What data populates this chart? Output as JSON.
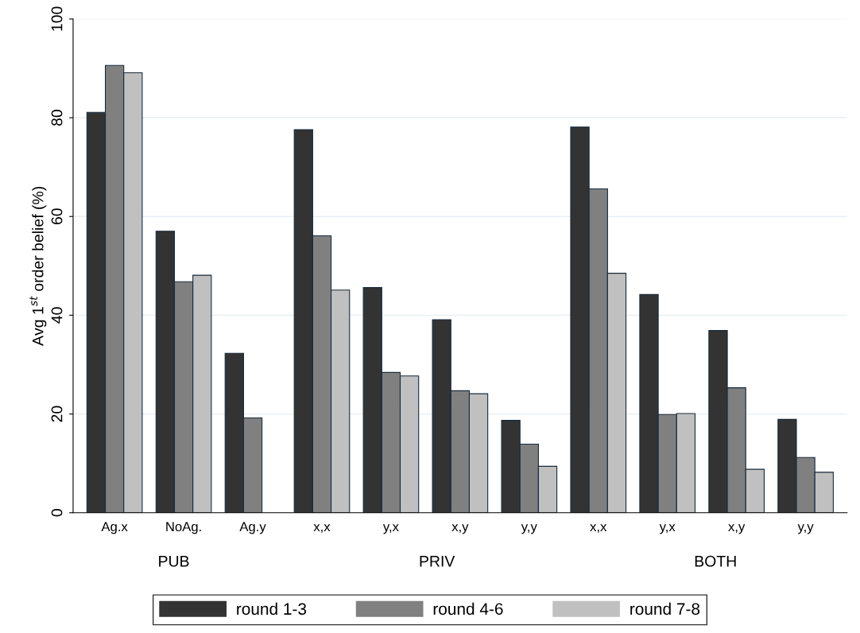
{
  "chart_data": {
    "type": "bar",
    "ylabel": "Avg 1$^{st}$ order belief (%)",
    "categories": [
      "Ag.x",
      "NoAg.",
      "Ag.y",
      "x,x",
      "y,x",
      "x,y",
      "y,y",
      "x,x",
      "y,x",
      "x,y",
      "y,y"
    ],
    "series": [
      {
        "name": "round 1-3",
        "color": "#333333",
        "values": [
          81.1,
          57.0,
          32.3,
          77.6,
          45.6,
          39.1,
          18.7,
          78.1,
          44.2,
          36.9,
          18.9
        ]
      },
      {
        "name": "round 4-6",
        "color": "#808080",
        "values": [
          90.6,
          46.8,
          19.2,
          56.1,
          28.4,
          24.7,
          13.9,
          65.6,
          19.9,
          25.3,
          11.2
        ]
      },
      {
        "name": "round 7-8",
        "color": "#c0c0c0",
        "values": [
          89.1,
          48.1,
          null,
          45.1,
          27.7,
          24.1,
          9.4,
          48.5,
          20.1,
          8.8,
          8.2
        ]
      }
    ],
    "annotations": [
      "PUB",
      "PRIV",
      "BOTH"
    ],
    "ylim": [
      0,
      100
    ],
    "yticks": [
      0,
      20,
      40,
      60,
      80,
      100
    ],
    "grid": "y",
    "legend": "bottom"
  }
}
